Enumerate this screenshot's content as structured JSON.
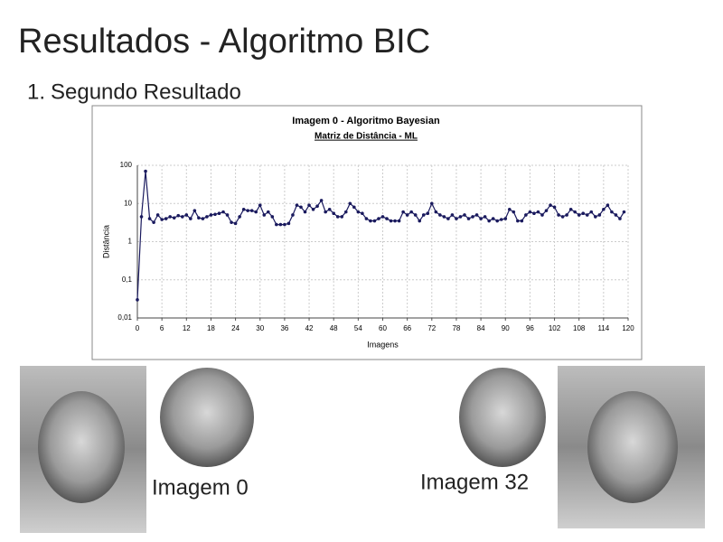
{
  "slide": {
    "title": "Resultados - Algoritmo BIC",
    "list": [
      {
        "marker": "1.",
        "text": "Segundo Resultado"
      }
    ],
    "captions": [
      "Imagem 0",
      "Imagem 32"
    ]
  },
  "chart_data": {
    "type": "line",
    "title": "Imagem 0 - Algoritmo Bayesian",
    "subtitle": "Matriz de Distância - ML",
    "x_label": "Imagens",
    "y_label": "Distância",
    "log_y": true,
    "grid": true,
    "color": "#1a1a5e",
    "xlim": [
      0,
      120
    ],
    "xticks": [
      0,
      6,
      12,
      18,
      24,
      30,
      36,
      42,
      48,
      54,
      60,
      66,
      72,
      78,
      84,
      90,
      96,
      102,
      108,
      114,
      120
    ],
    "ylim": [
      0.01,
      100
    ],
    "yticks": [
      {
        "value": 0.01,
        "label": "0,01"
      },
      {
        "value": 0.1,
        "label": "0,1"
      },
      1,
      10,
      100
    ],
    "x": [
      0,
      1,
      2,
      3,
      4,
      5,
      6,
      7,
      8,
      9,
      10,
      11,
      12,
      13,
      14,
      15,
      16,
      17,
      18,
      19,
      20,
      21,
      22,
      23,
      24,
      25,
      26,
      27,
      28,
      29,
      30,
      31,
      32,
      33,
      34,
      35,
      36,
      37,
      38,
      39,
      40,
      41,
      42,
      43,
      44,
      45,
      46,
      47,
      48,
      49,
      50,
      51,
      52,
      53,
      54,
      55,
      56,
      57,
      58,
      59,
      60,
      61,
      62,
      63,
      64,
      65,
      66,
      67,
      68,
      69,
      70,
      71,
      72,
      73,
      74,
      75,
      76,
      77,
      78,
      79,
      80,
      81,
      82,
      83,
      84,
      85,
      86,
      87,
      88,
      89,
      90,
      91,
      92,
      93,
      94,
      95,
      96,
      97,
      98,
      99,
      100,
      101,
      102,
      103,
      104,
      105,
      106,
      107,
      108,
      109,
      110,
      111,
      112,
      113,
      114,
      115,
      116,
      117,
      118,
      119
    ],
    "values": [
      0.03,
      4.5,
      70,
      4,
      3.2,
      5,
      3.8,
      4,
      4.5,
      4.2,
      4.8,
      4.5,
      5,
      4,
      6.5,
      4.2,
      4,
      4.5,
      5,
      5.2,
      5.5,
      6,
      5,
      3.2,
      3,
      4.5,
      7,
      6.5,
      6.5,
      6,
      9,
      5,
      6,
      4.5,
      2.8,
      2.8,
      2.8,
      3,
      5,
      9,
      8,
      6,
      9,
      7,
      8.5,
      12,
      6,
      7,
      5.5,
      4.5,
      4.5,
      6,
      10,
      8,
      6,
      5.5,
      4,
      3.5,
      3.5,
      4,
      4.5,
      4,
      3.5,
      3.5,
      3.5,
      6,
      5,
      6,
      5,
      3.5,
      5,
      5.5,
      10,
      6,
      5,
      4.5,
      4,
      5,
      4,
      4.5,
      5,
      4,
      4.5,
      5,
      4,
      4.5,
      3.5,
      4,
      3.5,
      3.8,
      4,
      7,
      6,
      3.5,
      3.5,
      5,
      6,
      5.5,
      6,
      5,
      6.5,
      9,
      8,
      5,
      4.5,
      5,
      7,
      6,
      5,
      5.5,
      5,
      6,
      4.5,
      5,
      7,
      9,
      6,
      5,
      4,
      6
    ]
  }
}
